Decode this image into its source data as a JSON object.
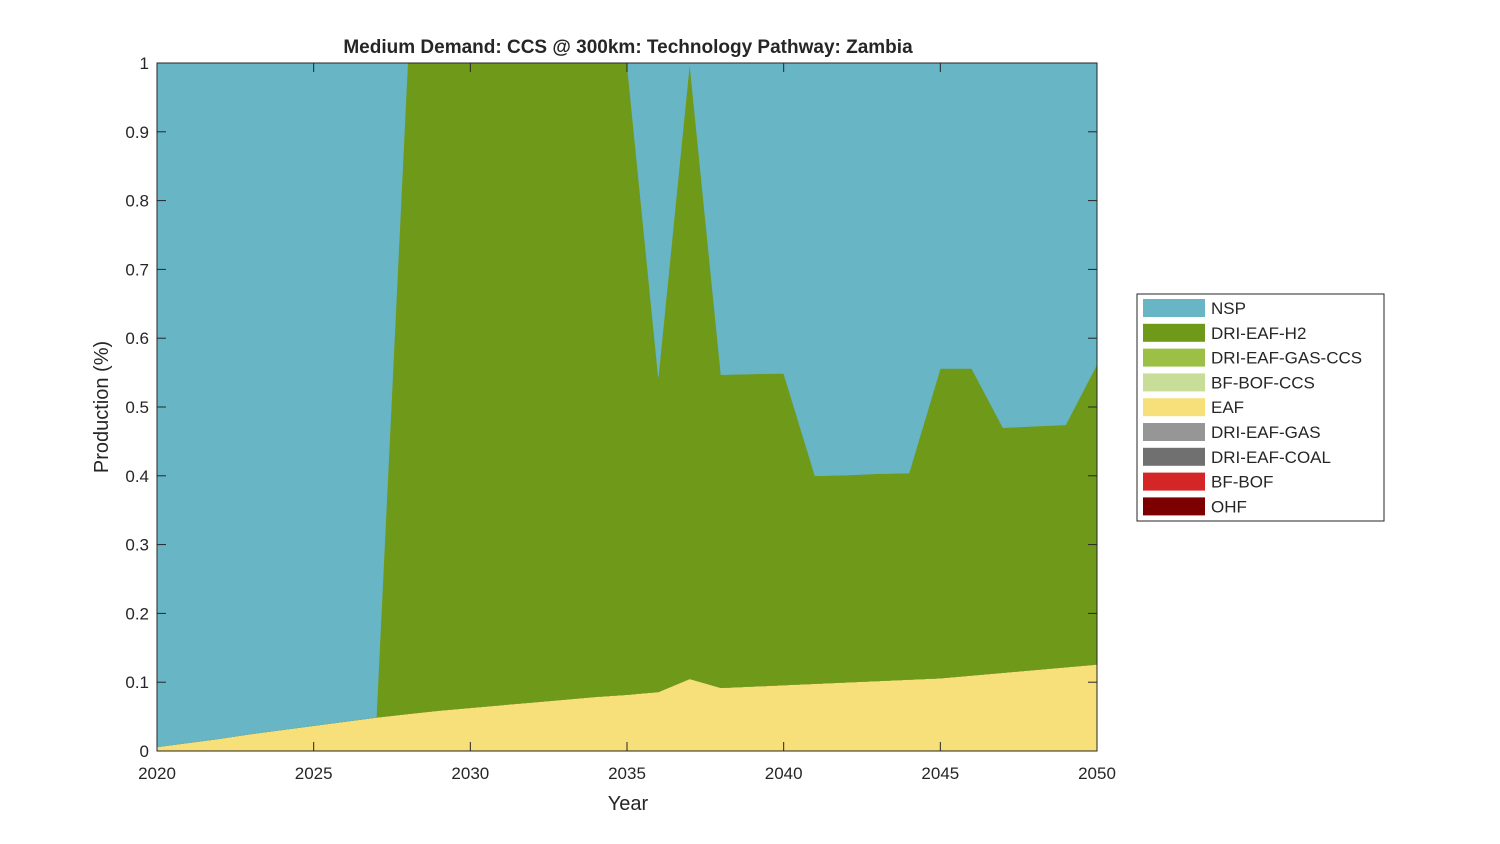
{
  "chart_data": {
    "type": "area",
    "stacked": true,
    "title": "Medium Demand: CCS @ 300km: Technology Pathway: Zambia",
    "xlabel": "Year",
    "ylabel": "Production (%)",
    "xlim": [
      2020,
      2050
    ],
    "ylim": [
      0,
      1
    ],
    "xticks": [
      "2020",
      "2025",
      "2030",
      "2035",
      "2040",
      "2045",
      "2050"
    ],
    "yticks": [
      "0",
      "0.1",
      "0.2",
      "0.3",
      "0.4",
      "0.5",
      "0.6",
      "0.7",
      "0.8",
      "0.9",
      "1"
    ],
    "legend_position": "right",
    "x": [
      2020,
      2021,
      2022,
      2023,
      2024,
      2025,
      2026,
      2027,
      2028,
      2029,
      2030,
      2031,
      2032,
      2033,
      2034,
      2035,
      2036,
      2037,
      2038,
      2039,
      2040,
      2041,
      2042,
      2043,
      2044,
      2045,
      2046,
      2047,
      2048,
      2049,
      2050
    ],
    "series": [
      {
        "name": "EAF",
        "color": "#F7DF79",
        "values": [
          0.006,
          0.012,
          0.018,
          0.025,
          0.031,
          0.037,
          0.043,
          0.049,
          0.054,
          0.059,
          0.063,
          0.067,
          0.071,
          0.075,
          0.079,
          0.082,
          0.086,
          0.105,
          0.092,
          0.094,
          0.096,
          0.098,
          0.1,
          0.102,
          0.104,
          0.106,
          0.11,
          0.114,
          0.118,
          0.122,
          0.126
        ]
      },
      {
        "name": "OHF",
        "color": "#7D0000",
        "values": [
          0,
          0,
          0,
          0,
          0,
          0,
          0,
          0,
          0,
          0,
          0,
          0,
          0,
          0,
          0,
          0,
          0,
          0,
          0,
          0,
          0,
          0,
          0,
          0,
          0,
          0,
          0,
          0,
          0,
          0,
          0
        ]
      },
      {
        "name": "BF-BOF",
        "color": "#D42626",
        "values": [
          0,
          0,
          0,
          0,
          0,
          0,
          0,
          0,
          0,
          0,
          0,
          0,
          0,
          0,
          0,
          0,
          0,
          0,
          0,
          0,
          0,
          0,
          0,
          0,
          0,
          0,
          0,
          0,
          0,
          0,
          0
        ]
      },
      {
        "name": "DRI-EAF-COAL",
        "color": "#707070",
        "values": [
          0,
          0,
          0,
          0,
          0,
          0,
          0,
          0,
          0,
          0,
          0,
          0,
          0,
          0,
          0,
          0,
          0,
          0,
          0,
          0,
          0,
          0,
          0,
          0,
          0,
          0,
          0,
          0,
          0,
          0,
          0
        ]
      },
      {
        "name": "DRI-EAF-GAS",
        "color": "#969696",
        "values": [
          0,
          0,
          0,
          0,
          0,
          0,
          0,
          0,
          0,
          0,
          0,
          0,
          0,
          0,
          0,
          0,
          0,
          0,
          0,
          0,
          0,
          0,
          0,
          0,
          0,
          0,
          0,
          0,
          0,
          0,
          0
        ]
      },
      {
        "name": "BF-BOF-CCS",
        "color": "#C8DD97",
        "values": [
          0,
          0,
          0,
          0,
          0,
          0,
          0,
          0,
          0,
          0,
          0,
          0,
          0,
          0,
          0,
          0,
          0,
          0,
          0,
          0,
          0,
          0,
          0,
          0,
          0,
          0,
          0,
          0,
          0,
          0,
          0
        ]
      },
      {
        "name": "DRI-EAF-GAS-CCS",
        "color": "#9CC046",
        "values": [
          0,
          0,
          0,
          0,
          0,
          0,
          0,
          0,
          0,
          0,
          0,
          0,
          0,
          0,
          0,
          0,
          0,
          0,
          0,
          0,
          0,
          0,
          0,
          0,
          0,
          0,
          0,
          0,
          0,
          0,
          0
        ]
      },
      {
        "name": "DRI-EAF-H2",
        "color": "#6F9918",
        "values": [
          0,
          0,
          0,
          0,
          0,
          0,
          0,
          0,
          0.946,
          0.941,
          0.937,
          0.933,
          0.929,
          0.925,
          0.921,
          0.918,
          0.458,
          0.895,
          0.455,
          0.454,
          0.453,
          0.302,
          0.301,
          0.301,
          0.3,
          0.45,
          0.446,
          0.356,
          0.354,
          0.352,
          0.436
        ]
      },
      {
        "name": "NSP",
        "color": "#67B5C5",
        "values": [
          0.994,
          0.988,
          0.982,
          0.975,
          0.969,
          0.963,
          0.957,
          0.951,
          0,
          0,
          0,
          0,
          0,
          0,
          0,
          0,
          0.456,
          0,
          0.453,
          0.452,
          0.451,
          0.6,
          0.599,
          0.597,
          0.596,
          0.444,
          0.444,
          0.53,
          0.528,
          0.526,
          0.438
        ]
      }
    ],
    "legend_order": [
      "NSP",
      "DRI-EAF-H2",
      "DRI-EAF-GAS-CCS",
      "BF-BOF-CCS",
      "EAF",
      "DRI-EAF-GAS",
      "DRI-EAF-COAL",
      "BF-BOF",
      "OHF"
    ]
  }
}
